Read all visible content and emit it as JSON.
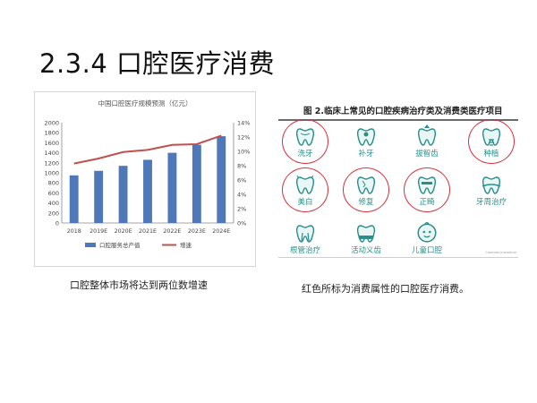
{
  "slide": {
    "title": "2.3.4  口腔医疗消费",
    "caption_left": "口腔整体市场将达到两位数增速",
    "caption_right": "红色所标为消费属性的口腔医疗消费。"
  },
  "chart_data": {
    "type": "bar",
    "title": "中国口腔医疗规模预测（亿元）",
    "categories": [
      "2018",
      "2019E",
      "2020E",
      "2021E",
      "2022E",
      "2023E",
      "2024E"
    ],
    "y_ticks": [
      "2000",
      "1800",
      "1600",
      "1400",
      "1200",
      "1000",
      "800",
      "600",
      "400",
      "200",
      "0"
    ],
    "y2_ticks": [
      "14%",
      "12%",
      "10%",
      "8%",
      "6%",
      "4%",
      "2%",
      "0%"
    ],
    "ylim": [
      0,
      2000
    ],
    "y2lim": [
      0,
      14
    ],
    "series": [
      {
        "name": "口腔服务总产值",
        "kind": "bar",
        "color": "#4f78b8",
        "values": [
          950,
          1040,
          1140,
          1260,
          1400,
          1560,
          1730
        ]
      },
      {
        "name": "增速",
        "kind": "line",
        "axis": "right",
        "color": "#c0504d",
        "values": [
          8.3,
          9.0,
          9.9,
          10.2,
          10.9,
          11.0,
          12.2
        ]
      }
    ],
    "legend_position": "bottom",
    "grid": false
  },
  "figure": {
    "title": "图 2.临床上常见的口腔疾病治疗类及消费类医疗项目",
    "credit": "Common procedure",
    "accent": "#2a8f8a",
    "ring_color": "#d8323c",
    "items": [
      {
        "label": "洗牙",
        "icon": "cleaning-tooth-icon",
        "highlighted": true
      },
      {
        "label": "补牙",
        "icon": "filling-tooth-icon",
        "highlighted": false
      },
      {
        "label": "拔智齿",
        "icon": "extraction-tooth-icon",
        "highlighted": false
      },
      {
        "label": "种植",
        "icon": "implant-tooth-icon",
        "highlighted": true
      },
      {
        "label": "美白",
        "icon": "whitening-tooth-icon",
        "highlighted": true
      },
      {
        "label": "修复",
        "icon": "restoration-tooth-icon",
        "highlighted": true
      },
      {
        "label": "正畸",
        "icon": "braces-tooth-icon",
        "highlighted": true
      },
      {
        "label": "牙周治疗",
        "icon": "periodontal-tooth-icon",
        "highlighted": false
      },
      {
        "label": "根管治疗",
        "icon": "root-canal-tooth-icon",
        "highlighted": false
      },
      {
        "label": "活动义齿",
        "icon": "denture-icon",
        "highlighted": false
      },
      {
        "label": "儿童口腔",
        "icon": "child-face-icon",
        "highlighted": false
      }
    ]
  }
}
